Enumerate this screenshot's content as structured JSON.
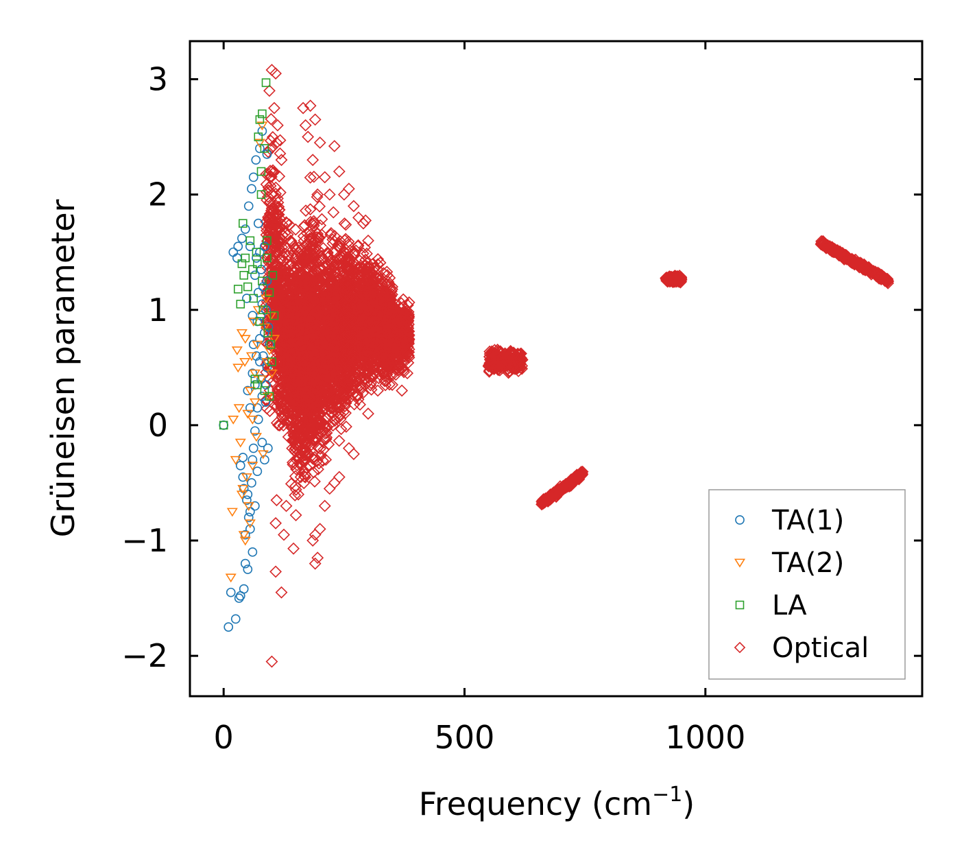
{
  "chart_data": {
    "type": "scatter",
    "title": "",
    "xlabel": "Frequency (cm",
    "xlabel_sup": "−1",
    "xlabel_close": ")",
    "ylabel": "Grüneisen parameter",
    "xlim": [
      -70,
      1450
    ],
    "ylim": [
      -2.35,
      3.33
    ],
    "xticks": [
      0,
      500,
      1000
    ],
    "xtick_labels": [
      "0",
      "500",
      "1000"
    ],
    "yticks": [
      -2,
      -1,
      0,
      1,
      2,
      3
    ],
    "ytick_labels": [
      "−2",
      "−1",
      "0",
      "1",
      "2",
      "3"
    ],
    "grid": false,
    "legend_position": "lower-right",
    "series": [
      {
        "name": "TA(1)",
        "marker": "circle",
        "color": "#1f77b4",
        "points": [
          [
            0,
            0
          ],
          [
            10,
            -1.75
          ],
          [
            15,
            -1.45
          ],
          [
            20,
            1.5
          ],
          [
            25,
            -1.68
          ],
          [
            28,
            1.45
          ],
          [
            30,
            1.55
          ],
          [
            32,
            -1.5
          ],
          [
            35,
            -1.48
          ],
          [
            38,
            1.62
          ],
          [
            40,
            -0.28
          ],
          [
            40,
            -0.45
          ],
          [
            42,
            -1.42
          ],
          [
            45,
            -1.2
          ],
          [
            45,
            1.7
          ],
          [
            48,
            -0.65
          ],
          [
            48,
            1.1
          ],
          [
            50,
            -1.25
          ],
          [
            50,
            0.3
          ],
          [
            52,
            1.9
          ],
          [
            52,
            -0.8
          ],
          [
            55,
            -0.9
          ],
          [
            55,
            1.55
          ],
          [
            55,
            0.15
          ],
          [
            58,
            2.05
          ],
          [
            58,
            -0.5
          ],
          [
            60,
            -1.1
          ],
          [
            60,
            0.95
          ],
          [
            62,
            2.15
          ],
          [
            62,
            -0.2
          ],
          [
            65,
            1.3
          ],
          [
            65,
            -0.7
          ],
          [
            67,
            2.3
          ],
          [
            68,
            0.6
          ],
          [
            70,
            -0.4
          ],
          [
            72,
            1.75
          ],
          [
            72,
            0.05
          ],
          [
            75,
            2.4
          ],
          [
            75,
            1.5
          ],
          [
            78,
            0.4
          ],
          [
            80,
            -0.15
          ],
          [
            80,
            2.55
          ],
          [
            82,
            1.2
          ],
          [
            85,
            0.8
          ],
          [
            85,
            -0.3
          ],
          [
            88,
            1.0
          ],
          [
            90,
            2.35
          ],
          [
            90,
            0.5
          ],
          [
            92,
            -0.2
          ],
          [
            95,
            0.7
          ],
          [
            60,
            0.45
          ],
          [
            65,
            0.35
          ],
          [
            70,
            0.9
          ],
          [
            75,
            0.55
          ],
          [
            78,
            1.35
          ],
          [
            80,
            0.25
          ],
          [
            85,
            1.55
          ],
          [
            88,
            0.35
          ],
          [
            45,
            -0.95
          ],
          [
            42,
            -0.55
          ],
          [
            35,
            -0.35
          ],
          [
            50,
            -0.6
          ],
          [
            55,
            -0.75
          ],
          [
            60,
            -0.3
          ],
          [
            65,
            -0.05
          ],
          [
            70,
            0.15
          ],
          [
            75,
            0.75
          ],
          [
            80,
            1.05
          ],
          [
            62,
            0.7
          ],
          [
            68,
            1.45
          ],
          [
            72,
            1.15
          ],
          [
            77,
            0.95
          ],
          [
            82,
            0.6
          ],
          [
            87,
            0.2
          ],
          [
            90,
            1.25
          ],
          [
            93,
            0.85
          ]
        ]
      },
      {
        "name": "TA(2)",
        "marker": "triangle-down",
        "color": "#ff7f0e",
        "points": [
          [
            15,
            -1.32
          ],
          [
            18,
            -0.75
          ],
          [
            20,
            0.05
          ],
          [
            25,
            -0.3
          ],
          [
            28,
            0.65
          ],
          [
            30,
            0.5
          ],
          [
            32,
            0.15
          ],
          [
            35,
            -0.15
          ],
          [
            38,
            0.8
          ],
          [
            40,
            -0.55
          ],
          [
            42,
            -0.95
          ],
          [
            44,
            0.55
          ],
          [
            45,
            0.75
          ],
          [
            48,
            -0.45
          ],
          [
            50,
            0.1
          ],
          [
            52,
            -0.7
          ],
          [
            55,
            0.3
          ],
          [
            58,
            0.6
          ],
          [
            60,
            -0.35
          ],
          [
            62,
            0.9
          ],
          [
            65,
            0.2
          ],
          [
            68,
            -0.1
          ],
          [
            70,
            0.7
          ],
          [
            72,
            1.0
          ],
          [
            75,
            2.45
          ],
          [
            78,
            0.4
          ],
          [
            80,
            2.6
          ],
          [
            82,
            -0.25
          ],
          [
            85,
            0.85
          ],
          [
            88,
            1.1
          ],
          [
            90,
            0.55
          ],
          [
            92,
            0.25
          ],
          [
            95,
            0.65
          ],
          [
            98,
            0.95
          ],
          [
            100,
            0.45
          ],
          [
            105,
            0.75
          ],
          [
            45,
            -1.0
          ],
          [
            38,
            -0.6
          ],
          [
            55,
            -0.85
          ],
          [
            60,
            0.05
          ],
          [
            65,
            0.45
          ]
        ]
      },
      {
        "name": "LA",
        "marker": "square",
        "color": "#2ca02c",
        "points": [
          [
            0,
            0
          ],
          [
            30,
            1.18
          ],
          [
            35,
            1.05
          ],
          [
            38,
            1.4
          ],
          [
            40,
            1.75
          ],
          [
            42,
            1.3
          ],
          [
            45,
            1.45
          ],
          [
            50,
            1.2
          ],
          [
            55,
            1.6
          ],
          [
            60,
            1.35
          ],
          [
            62,
            1.1
          ],
          [
            65,
            0.4
          ],
          [
            68,
            1.5
          ],
          [
            70,
            0.35
          ],
          [
            72,
            2.5
          ],
          [
            75,
            2.65
          ],
          [
            78,
            2.2
          ],
          [
            80,
            2.7
          ],
          [
            82,
            1.0
          ],
          [
            85,
            0.3
          ],
          [
            88,
            2.97
          ],
          [
            90,
            1.45
          ],
          [
            92,
            0.8
          ],
          [
            95,
            1.15
          ],
          [
            98,
            0.7
          ],
          [
            100,
            0.55
          ],
          [
            102,
            1.3
          ],
          [
            105,
            0.95
          ],
          [
            78,
            2.0
          ],
          [
            85,
            2.4
          ],
          [
            90,
            1.6
          ],
          [
            95,
            0.25
          ],
          [
            80,
            1.25
          ],
          [
            75,
            0.9
          ],
          [
            70,
            1.4
          ]
        ]
      },
      {
        "name": "Optical",
        "marker": "diamond",
        "color": "#d62728",
        "points": [
          [
            100,
            3.08
          ],
          [
            108,
            3.05
          ],
          [
            95,
            2.9
          ],
          [
            105,
            2.75
          ],
          [
            112,
            2.6
          ],
          [
            100,
            2.2
          ],
          [
            110,
            2.45
          ],
          [
            120,
            2.3
          ],
          [
            100,
            -2.05
          ],
          [
            108,
            -1.27
          ],
          [
            120,
            -1.45
          ],
          [
            108,
            -0.85
          ],
          [
            125,
            -0.95
          ],
          [
            110,
            -0.65
          ],
          [
            130,
            -0.7
          ],
          [
            150,
            -0.78
          ],
          [
            145,
            -1.07
          ],
          [
            155,
            -0.6
          ],
          [
            160,
            -0.45
          ],
          [
            165,
            2.75
          ],
          [
            170,
            2.6
          ],
          [
            175,
            2.5
          ],
          [
            180,
            2.77
          ],
          [
            185,
            2.3
          ],
          [
            190,
            2.65
          ],
          [
            195,
            2.0
          ],
          [
            200,
            2.45
          ],
          [
            190,
            -1.2
          ],
          [
            195,
            -1.15
          ],
          [
            190,
            -0.95
          ],
          [
            200,
            -0.9
          ],
          [
            185,
            -1.0
          ],
          [
            210,
            2.15
          ],
          [
            220,
            2.0
          ],
          [
            230,
            2.42
          ],
          [
            240,
            2.2
          ],
          [
            250,
            2.0
          ],
          [
            260,
            2.05
          ],
          [
            270,
            1.9
          ],
          [
            280,
            1.8
          ],
          [
            290,
            1.75
          ],
          [
            300,
            1.6
          ],
          [
            310,
            1.4
          ],
          [
            320,
            1.3
          ],
          [
            330,
            1.15
          ],
          [
            340,
            1.0
          ],
          [
            350,
            1.2
          ],
          [
            360,
            0.9
          ],
          [
            370,
            0.8
          ],
          [
            380,
            0.65
          ],
          [
            240,
            -0.45
          ],
          [
            260,
            -0.2
          ],
          [
            270,
            -0.25
          ],
          [
            300,
            0.1
          ],
          [
            320,
            0.3
          ],
          [
            350,
            0.35
          ],
          [
            370,
            0.3
          ],
          [
            210,
            -0.7
          ],
          [
            220,
            -0.55
          ],
          [
            230,
            -0.5
          ]
        ],
        "clusters": [
          {
            "x_range": [
              88,
              118
            ],
            "y_range": [
              -0.3,
              2.9
            ],
            "count": 320
          },
          {
            "x_range": [
              110,
              160
            ],
            "y_range": [
              -0.4,
              2.0
            ],
            "count": 650
          },
          {
            "x_range": [
              140,
              175
            ],
            "y_range": [
              -0.8,
              1.6
            ],
            "count": 450
          },
          {
            "x_range": [
              160,
              200
            ],
            "y_range": [
              -0.7,
              2.3
            ],
            "count": 550
          },
          {
            "x_range": [
              175,
              215
            ],
            "y_range": [
              -0.7,
              1.9
            ],
            "count": 550
          },
          {
            "x_range": [
              210,
              260
            ],
            "y_range": [
              -0.3,
              1.9
            ],
            "count": 800
          },
          {
            "x_range": [
              250,
              310
            ],
            "y_range": [
              0.0,
              1.8
            ],
            "count": 800
          },
          {
            "x_range": [
              300,
              350
            ],
            "y_range": [
              0.2,
              1.5
            ],
            "count": 650
          },
          {
            "x_range": [
              340,
              385
            ],
            "y_range": [
              0.35,
              1.2
            ],
            "count": 500
          },
          {
            "x_range": [
              550,
              620
            ],
            "y_range": [
              0.42,
              0.7
            ],
            "count": 280,
            "trend": 0.0
          },
          {
            "x_range": [
              660,
              745
            ],
            "y_range": [
              -0.68,
              -0.42
            ],
            "count": 260,
            "trend": 1
          },
          {
            "x_range": [
              918,
              950
            ],
            "y_range": [
              1.22,
              1.32
            ],
            "count": 130,
            "trend": 0.0
          },
          {
            "x_range": [
              1240,
              1380
            ],
            "y_range": [
              1.25,
              1.58
            ],
            "count": 320,
            "trend": -1
          }
        ]
      }
    ]
  }
}
